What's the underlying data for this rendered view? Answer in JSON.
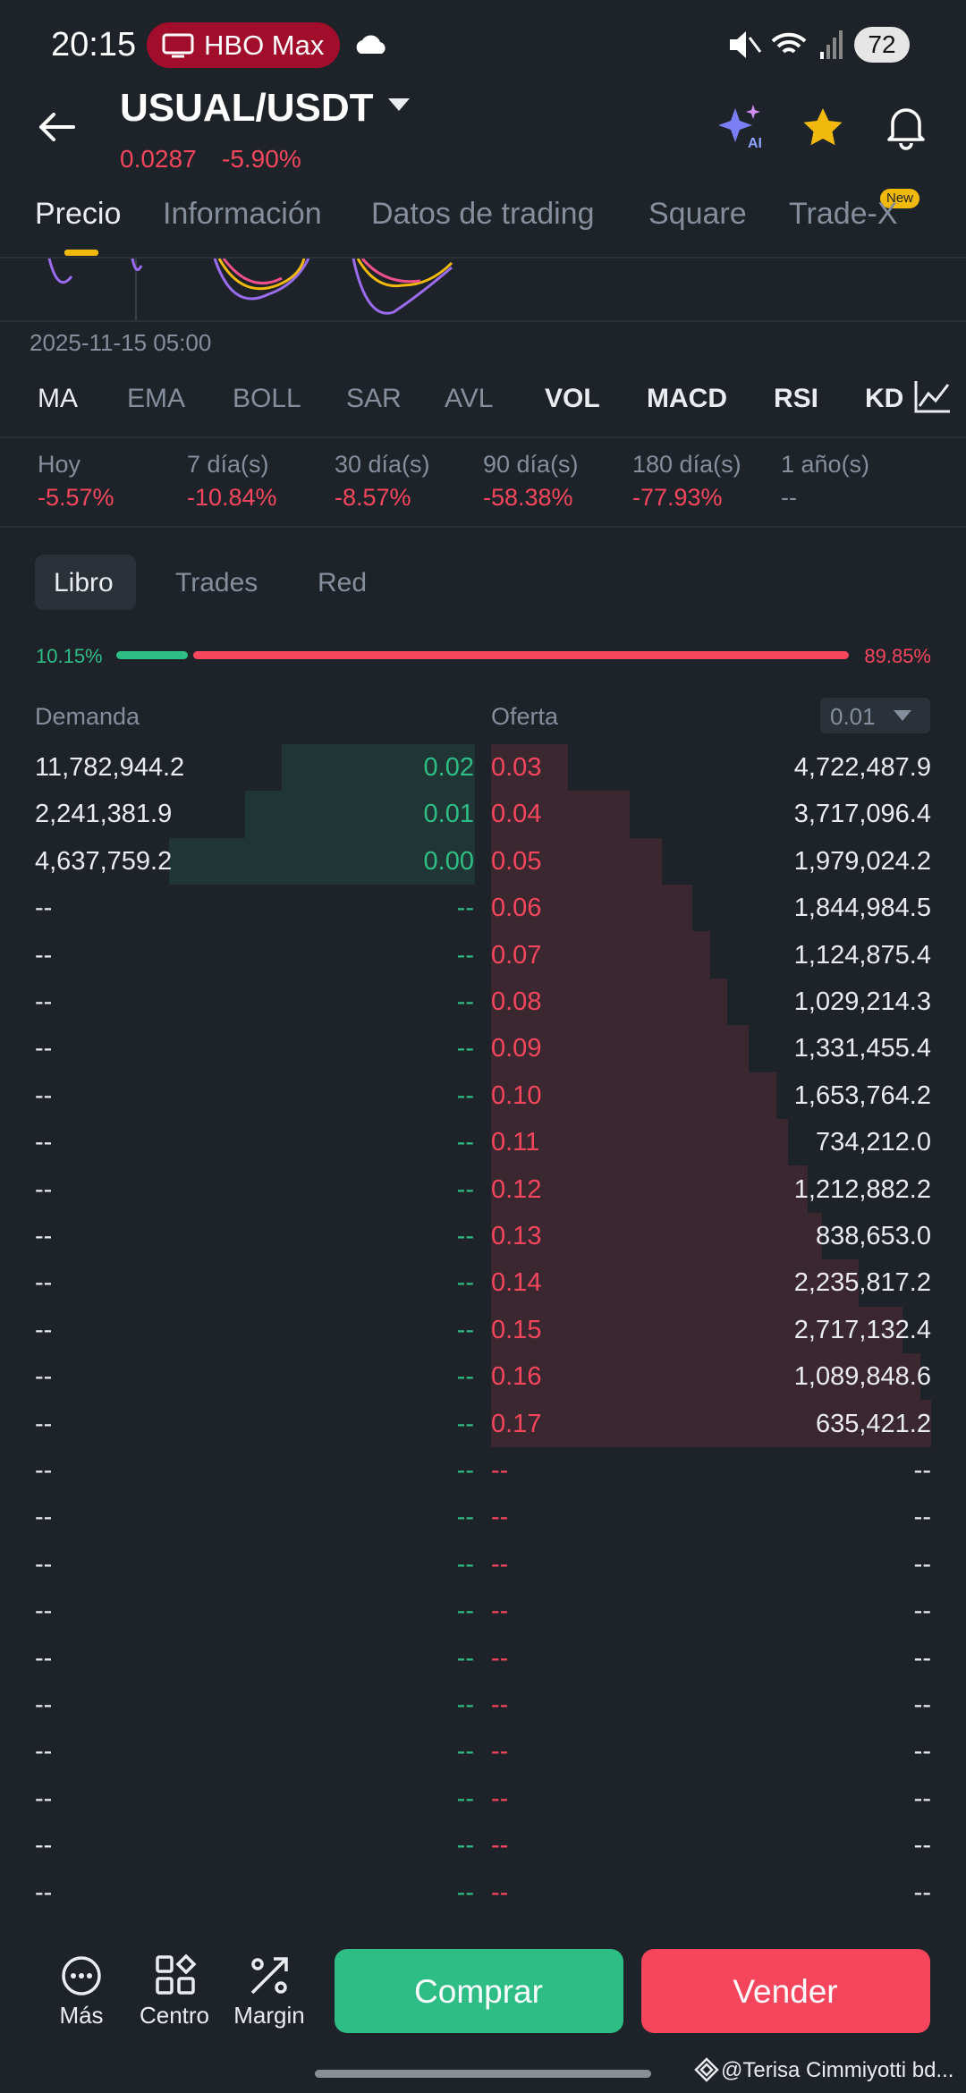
{
  "status_bar": {
    "time": "20:15",
    "app": "HBO Max",
    "battery": "72"
  },
  "header": {
    "pair": "USUAL/USDT",
    "price": "0.0287",
    "change": "-5.90%"
  },
  "tabs": [
    "Precio",
    "Información",
    "Datos de trading",
    "Square",
    "Trade-X"
  ],
  "new_badge": "New",
  "chart_time": "2025-11-15 05:00",
  "indicators": [
    "MA",
    "EMA",
    "BOLL",
    "SAR",
    "AVL",
    "VOL",
    "MACD",
    "RSI",
    "KD"
  ],
  "periods": [
    {
      "label": "Hoy",
      "value": "-5.57%"
    },
    {
      "label": "7 día(s)",
      "value": "-10.84%"
    },
    {
      "label": "30 día(s)",
      "value": "-8.57%"
    },
    {
      "label": "90 día(s)",
      "value": "-58.38%"
    },
    {
      "label": "180 día(s)",
      "value": "-77.93%"
    },
    {
      "label": "1 año(s)",
      "value": "--"
    }
  ],
  "book_tabs": [
    "Libro",
    "Trades",
    "Red"
  ],
  "ratio": {
    "bid": "10.15%",
    "ask": "89.85%"
  },
  "book": {
    "bid_header": "Demanda",
    "ask_header": "Oferta",
    "precision": "0.01",
    "rows": [
      [
        "11,782,944.2",
        "0.02",
        "0.03",
        "4,722,487.9"
      ],
      [
        "2,241,381.9",
        "0.01",
        "0.04",
        "3,717,096.4"
      ],
      [
        "4,637,759.2",
        "0.00",
        "0.05",
        "1,979,024.2"
      ],
      [
        "--",
        "--",
        "0.06",
        "1,844,984.5"
      ],
      [
        "--",
        "--",
        "0.07",
        "1,124,875.4"
      ],
      [
        "--",
        "--",
        "0.08",
        "1,029,214.3"
      ],
      [
        "--",
        "--",
        "0.09",
        "1,331,455.4"
      ],
      [
        "--",
        "--",
        "0.10",
        "1,653,764.2"
      ],
      [
        "--",
        "--",
        "0.11",
        "734,212.0"
      ],
      [
        "--",
        "--",
        "0.12",
        "1,212,882.2"
      ],
      [
        "--",
        "--",
        "0.13",
        "838,653.0"
      ],
      [
        "--",
        "--",
        "0.14",
        "2,235,817.2"
      ],
      [
        "--",
        "--",
        "0.15",
        "2,717,132.4"
      ],
      [
        "--",
        "--",
        "0.16",
        "1,089,848.6"
      ],
      [
        "--",
        "--",
        "0.17",
        "635,421.2"
      ],
      [
        "--",
        "--",
        "--",
        "--"
      ],
      [
        "--",
        "--",
        "--",
        "--"
      ],
      [
        "--",
        "--",
        "--",
        "--"
      ],
      [
        "--",
        "--",
        "--",
        "--"
      ],
      [
        "--",
        "--",
        "--",
        "--"
      ],
      [
        "--",
        "--",
        "--",
        "--"
      ],
      [
        "--",
        "--",
        "--",
        "--"
      ],
      [
        "--",
        "--",
        "--",
        "--"
      ],
      [
        "--",
        "--",
        "--",
        "--"
      ],
      [
        "--",
        "--",
        "--",
        "--"
      ]
    ]
  },
  "bottom": {
    "actions": [
      "Más",
      "Centro",
      "Margin"
    ],
    "buy": "Comprar",
    "sell": "Vender"
  },
  "watermark": "@Terisa Cimmiyotti bd..."
}
